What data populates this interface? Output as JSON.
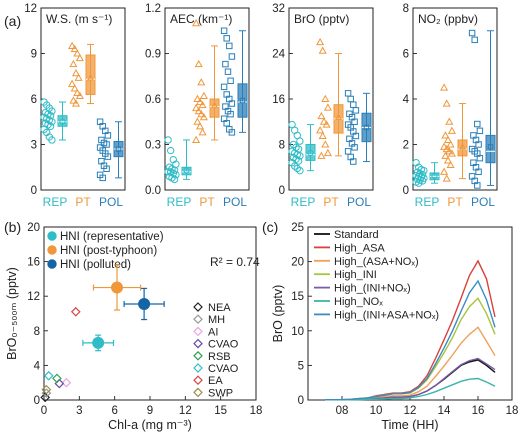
{
  "panel_labels": {
    "a": "(a)",
    "b": "(b)",
    "c": "(c)"
  },
  "colors": {
    "rep": "#2fbcc7",
    "pt": "#f0973a",
    "pol": "#2a7fb8",
    "dark_blue": "#1565a6"
  },
  "chart_data": [
    {
      "type": "box",
      "panel": "a1",
      "title": "W.S. (m s⁻¹)",
      "ylim": [
        0,
        12
      ],
      "yticks": [
        0,
        3,
        6,
        9,
        12
      ],
      "categories": [
        "REP",
        "PT",
        "POL"
      ],
      "boxes": [
        {
          "name": "REP",
          "whisker_low": 3.3,
          "q1": 4.2,
          "median": 4.5,
          "q3": 4.9,
          "whisker_high": 5.8,
          "mean": 4.5,
          "points": [
            5.8,
            5.6,
            5.4,
            5.2,
            5.1,
            5.0,
            4.9,
            4.8,
            4.7,
            4.6,
            4.5,
            4.4,
            4.3,
            4.2,
            4.0,
            3.8,
            3.5,
            3.3
          ]
        },
        {
          "name": "PT",
          "whisker_low": 5.7,
          "q1": 6.3,
          "median": 7.3,
          "q3": 8.9,
          "whisker_high": 9.6,
          "mean": 7.4,
          "points": [
            9.5,
            9.3,
            9.0,
            8.7,
            8.3,
            7.7,
            7.4,
            7.0,
            6.7,
            6.4,
            6.2,
            5.9,
            5.7
          ]
        },
        {
          "name": "POL",
          "whisker_low": 0.8,
          "q1": 2.2,
          "median": 2.7,
          "q3": 3.2,
          "whisker_high": 4.5,
          "mean": 2.7,
          "points": [
            4.5,
            4.2,
            3.9,
            3.6,
            3.3,
            3.1,
            3.0,
            2.8,
            2.6,
            2.4,
            2.2,
            1.9,
            1.6,
            1.4,
            1.0,
            0.8
          ]
        }
      ]
    },
    {
      "type": "box",
      "panel": "a2",
      "title": "AEC (km⁻¹)",
      "ylim": [
        0,
        1.2
      ],
      "yticks": [
        0,
        0.3,
        0.6,
        0.9,
        1.2
      ],
      "ytick_labels": [
        "0.0",
        "0.3",
        "0.6",
        "0.9",
        "1.2"
      ],
      "categories": [
        "REP",
        "PT",
        "POL"
      ],
      "boxes": [
        {
          "name": "REP",
          "whisker_low": 0.07,
          "q1": 0.1,
          "median": 0.12,
          "q3": 0.15,
          "whisker_high": 0.33,
          "mean": 0.13,
          "points": [
            0.33,
            0.26,
            0.2,
            0.17,
            0.15,
            0.14,
            0.13,
            0.12,
            0.12,
            0.11,
            0.1,
            0.09,
            0.08,
            0.07
          ]
        },
        {
          "name": "PT",
          "whisker_low": 0.33,
          "q1": 0.48,
          "median": 0.55,
          "q3": 0.6,
          "whisker_high": 0.95,
          "mean": 0.56,
          "points": [
            1.1,
            0.83,
            0.71,
            0.62,
            0.6,
            0.58,
            0.56,
            0.54,
            0.52,
            0.5,
            0.48,
            0.45,
            0.42,
            0.38,
            0.33
          ]
        },
        {
          "name": "POL",
          "whisker_low": 0.38,
          "q1": 0.48,
          "median": 0.58,
          "q3": 0.7,
          "whisker_high": 1.05,
          "mean": 0.59,
          "points": [
            1.05,
            1.0,
            0.95,
            0.88,
            0.83,
            0.78,
            0.72,
            0.68,
            0.63,
            0.6,
            0.57,
            0.55,
            0.52,
            0.5,
            0.47,
            0.44,
            0.4,
            0.38
          ]
        }
      ]
    },
    {
      "type": "box",
      "panel": "a3",
      "title": "BrO (pptv)",
      "ylim": [
        0,
        32
      ],
      "yticks": [
        0,
        8,
        16,
        24,
        32
      ],
      "categories": [
        "REP",
        "PT",
        "POL"
      ],
      "boxes": [
        {
          "name": "REP",
          "whisker_low": 3.4,
          "q1": 5.2,
          "median": 6.2,
          "q3": 8.0,
          "whisker_high": 11.5,
          "mean": 6.5,
          "points": [
            11.5,
            10.5,
            9.6,
            8.6,
            8.0,
            7.5,
            7.2,
            6.8,
            6.5,
            6.2,
            6.0,
            5.7,
            5.4,
            5.1,
            4.8,
            4.2,
            3.8,
            3.4
          ]
        },
        {
          "name": "PT",
          "whisker_low": 6.0,
          "q1": 10.0,
          "median": 12.5,
          "q3": 15.0,
          "whisker_high": 24.0,
          "mean": 12.8,
          "points": [
            26.0,
            24.5,
            16.0,
            14.5,
            13.0,
            12.0,
            11.5,
            10.5,
            9.5,
            8.0,
            6.5,
            6.0
          ]
        },
        {
          "name": "POL",
          "whisker_low": 5.0,
          "q1": 8.5,
          "median": 11.0,
          "q3": 13.5,
          "whisker_high": 17.0,
          "mean": 11.0,
          "points": [
            17.0,
            16.0,
            15.0,
            14.0,
            13.4,
            12.8,
            12.0,
            11.5,
            11.0,
            10.3,
            9.5,
            9.0,
            8.2,
            7.5,
            6.8,
            5.8,
            5.0
          ]
        }
      ]
    },
    {
      "type": "box",
      "panel": "a4",
      "title": "NO₂ (ppbv)",
      "ylim": [
        0,
        8
      ],
      "yticks": [
        0,
        2,
        4,
        6,
        8
      ],
      "categories": [
        "REP",
        "PT",
        "POL"
      ],
      "boxes": [
        {
          "name": "REP",
          "whisker_low": 0.3,
          "q1": 0.45,
          "median": 0.6,
          "q3": 0.75,
          "whisker_high": 1.2,
          "mean": 0.62,
          "points": [
            1.2,
            1.0,
            0.9,
            0.85,
            0.78,
            0.72,
            0.68,
            0.63,
            0.6,
            0.56,
            0.52,
            0.48,
            0.44,
            0.4,
            0.35,
            0.3
          ]
        },
        {
          "name": "PT",
          "whisker_low": 0.5,
          "q1": 1.5,
          "median": 1.8,
          "q3": 2.2,
          "whisker_high": 3.8,
          "mean": 1.9,
          "points": [
            4.5,
            3.8,
            3.0,
            2.6,
            2.4,
            2.2,
            2.0,
            1.9,
            1.8,
            1.7,
            1.6,
            1.5,
            1.3,
            1.1,
            0.8,
            0.5
          ]
        },
        {
          "name": "POL",
          "whisker_low": 0.2,
          "q1": 1.2,
          "median": 1.7,
          "q3": 2.4,
          "whisker_high": 7.0,
          "mean": 1.9,
          "points": [
            6.9,
            6.6,
            2.9,
            2.6,
            2.4,
            2.2,
            2.0,
            1.8,
            1.7,
            1.6,
            1.4,
            1.2,
            1.0,
            0.8,
            0.6,
            0.4,
            0.2
          ]
        }
      ]
    },
    {
      "type": "scatter",
      "panel": "b",
      "xlabel": "Chl-a (mg m⁻³)",
      "ylabel": "BrO₀₋₅₀₀ₘ (pptv)",
      "xlim": [
        0,
        18
      ],
      "ylim": [
        0,
        20
      ],
      "xticks": [
        0,
        3,
        6,
        9,
        12,
        15,
        18
      ],
      "yticks": [
        0,
        4,
        8,
        12,
        16,
        20
      ],
      "annotation": "R² = 0.74",
      "legend_top": [
        {
          "name": "HNI (representative)",
          "color": "#2fbcc7"
        },
        {
          "name": "HNI (post-typhoon)",
          "color": "#f0973a"
        },
        {
          "name": "HNI (polluted)",
          "color": "#1565a6"
        }
      ],
      "hni_points": [
        {
          "name": "HNI (representative)",
          "x": 4.6,
          "y": 6.6,
          "xerr": 1.3,
          "yerr": 0.9,
          "color": "#2fbcc7"
        },
        {
          "name": "HNI (post-typhoon)",
          "x": 6.2,
          "y": 13.0,
          "xerr": 2.0,
          "yerr": 2.6,
          "color": "#f0973a"
        },
        {
          "name": "HNI (polluted)",
          "x": 8.5,
          "y": 11.1,
          "xerr": 1.7,
          "yerr": 1.8,
          "color": "#1565a6"
        }
      ],
      "sites": [
        {
          "name": "NEA",
          "x": 0.1,
          "y": 0.3,
          "color": "#222222"
        },
        {
          "name": "MH",
          "x": 0.2,
          "y": 0.8,
          "color": "#999999"
        },
        {
          "name": "AI",
          "x": 1.9,
          "y": 2.0,
          "color": "#e8a6e4"
        },
        {
          "name": "CVAO",
          "x": 1.3,
          "y": 1.9,
          "color": "#6a48a8"
        },
        {
          "name": "RSB",
          "x": 1.1,
          "y": 2.5,
          "color": "#2e9e52"
        },
        {
          "name": "CVAO",
          "x": 0.4,
          "y": 2.8,
          "color": "#2fbcc7"
        },
        {
          "name": "EA",
          "x": 2.7,
          "y": 10.2,
          "color": "#d84545"
        },
        {
          "name": "SWP",
          "x": 0.2,
          "y": 1.2,
          "color": "#9a8c4e"
        }
      ]
    },
    {
      "type": "line",
      "panel": "c",
      "xlabel": "Time (HH)",
      "ylabel": "BrO (pptv)",
      "xlim": [
        6,
        18
      ],
      "ylim": [
        0,
        25
      ],
      "xticks": [
        6,
        8,
        10,
        12,
        14,
        16,
        18
      ],
      "xtick_labels": [
        "",
        "08",
        "10",
        "12",
        "14",
        "16",
        "18"
      ],
      "yticks": [
        0,
        5,
        10,
        15,
        20,
        25
      ],
      "x": [
        7,
        7.5,
        8,
        8.5,
        9,
        9.5,
        10,
        10.5,
        11,
        11.5,
        12,
        12.5,
        13,
        13.5,
        14,
        14.5,
        15,
        15.5,
        16,
        16.5,
        17
      ],
      "series": [
        {
          "name": "Standard",
          "color": "#111111",
          "values": [
            0.05,
            0.05,
            0.05,
            0.05,
            0.1,
            0.1,
            0.2,
            0.3,
            0.4,
            0.4,
            0.5,
            0.8,
            1.3,
            2.1,
            3.0,
            4.0,
            5.0,
            5.5,
            5.8,
            5.0,
            4.0
          ]
        },
        {
          "name": "High_ASA",
          "color": "#d9413a",
          "values": [
            0.05,
            0.05,
            0.05,
            0.1,
            0.2,
            0.3,
            0.6,
            0.8,
            1.0,
            1.0,
            1.2,
            2.0,
            3.5,
            6.0,
            8.7,
            11.5,
            14.7,
            18.0,
            20.1,
            17.5,
            12.0
          ]
        },
        {
          "name": "High_(ASA+NOₓ)",
          "color": "#f0a05a",
          "values": [
            0.05,
            0.05,
            0.05,
            0.1,
            0.15,
            0.2,
            0.4,
            0.5,
            0.6,
            0.6,
            0.7,
            1.2,
            2.0,
            3.4,
            4.9,
            6.5,
            8.2,
            9.5,
            10.5,
            8.5,
            6.4
          ]
        },
        {
          "name": "High_INI",
          "color": "#a8c43c",
          "values": [
            0.05,
            0.05,
            0.05,
            0.1,
            0.2,
            0.3,
            0.5,
            0.7,
            0.9,
            0.9,
            1.0,
            1.7,
            2.9,
            4.8,
            6.8,
            9.0,
            11.6,
            13.5,
            14.7,
            12.5,
            9.5
          ]
        },
        {
          "name": "High_(INI+NOₓ)",
          "color": "#7b5ca8",
          "values": [
            0.05,
            0.05,
            0.05,
            0.05,
            0.1,
            0.1,
            0.2,
            0.3,
            0.4,
            0.4,
            0.5,
            0.8,
            1.3,
            2.1,
            3.1,
            4.1,
            5.1,
            5.7,
            6.0,
            5.2,
            4.4
          ]
        },
        {
          "name": "High_NOₓ",
          "color": "#3cb4a8",
          "values": [
            0.05,
            0.05,
            0.05,
            0.05,
            0.05,
            0.1,
            0.1,
            0.15,
            0.2,
            0.2,
            0.3,
            0.5,
            0.8,
            1.2,
            1.7,
            2.2,
            2.7,
            3.0,
            3.1,
            2.6,
            2.0
          ]
        },
        {
          "name": "High_(INI+ASA+NOₓ)",
          "color": "#3a8cc4",
          "values": [
            0.05,
            0.05,
            0.05,
            0.1,
            0.2,
            0.3,
            0.5,
            0.7,
            0.9,
            0.9,
            1.1,
            1.8,
            3.1,
            5.2,
            7.5,
            10.0,
            12.8,
            15.5,
            17.2,
            14.5,
            10.5
          ]
        }
      ]
    }
  ]
}
